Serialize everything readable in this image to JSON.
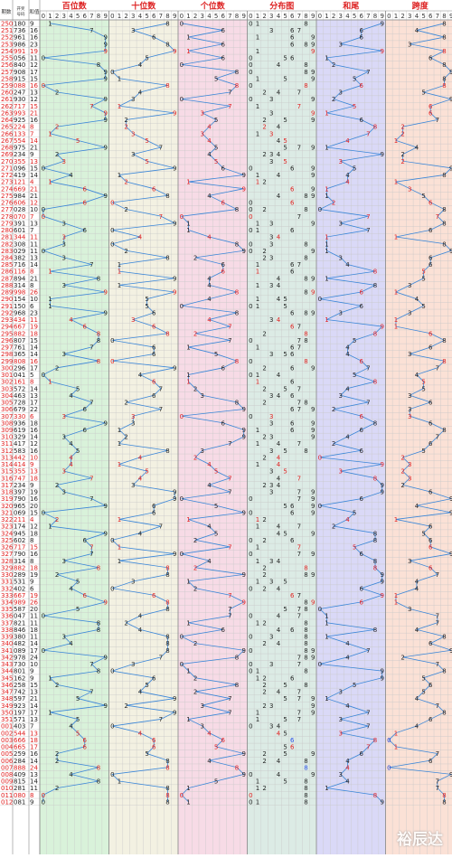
{
  "chart_data": {
    "type": "line",
    "title": "",
    "header_labels": {
      "period": "期数",
      "number": "开奖号码",
      "sum": "和值"
    },
    "sections": [
      {
        "key": "bai",
        "title": "百位数",
        "digits": [
          "0",
          "1",
          "2",
          "3",
          "4",
          "5",
          "6",
          "7",
          "8",
          "9"
        ],
        "bg": "#d9f2da",
        "line_color": "#3a86d8"
      },
      {
        "key": "shi",
        "title": "十位数",
        "digits": [
          "0",
          "1",
          "2",
          "3",
          "4",
          "5",
          "6",
          "7",
          "8",
          "9"
        ],
        "bg": "#f3f1e2",
        "line_color": "#3a86d8"
      },
      {
        "key": "ge",
        "title": "个位数",
        "digits": [
          "0",
          "1",
          "2",
          "3",
          "4",
          "5",
          "6",
          "7",
          "8",
          "9"
        ],
        "bg": "#f7dbe6",
        "line_color": "#3a86d8"
      },
      {
        "key": "fenbu",
        "title": "分布图",
        "digits": [
          "0",
          "1",
          "2",
          "3",
          "4",
          "5",
          "6",
          "7",
          "8",
          "9"
        ],
        "bg": "#dcebe5",
        "line_color": "#3a86d8"
      },
      {
        "key": "hewei",
        "title": "和尾",
        "digits": [
          "0",
          "1",
          "2",
          "3",
          "4",
          "5",
          "6",
          "7",
          "8",
          "9"
        ],
        "bg": "#dad9f7",
        "line_color": "#3a86d8"
      },
      {
        "key": "kuadu",
        "title": "跨度",
        "digits": [
          "0",
          "1",
          "2",
          "3",
          "4",
          "5",
          "6",
          "7",
          "8",
          "9"
        ],
        "bg": "#fbe1d6",
        "line_color": "#3a86d8"
      }
    ],
    "rows": [
      {
        "p": "250",
        "n": "180",
        "s": "9"
      },
      {
        "p": "251",
        "n": "736",
        "s": "16"
      },
      {
        "p": "252",
        "n": "961",
        "s": "16"
      },
      {
        "p": "253",
        "n": "986",
        "s": "23"
      },
      {
        "p": "254",
        "n": "991",
        "s": "19"
      },
      {
        "p": "255",
        "n": "056",
        "s": "11"
      },
      {
        "p": "256",
        "n": "840",
        "s": "12"
      },
      {
        "p": "257",
        "n": "908",
        "s": "17"
      },
      {
        "p": "258",
        "n": "915",
        "s": "15"
      },
      {
        "p": "259",
        "n": "088",
        "s": "16"
      },
      {
        "p": "260",
        "n": "247",
        "s": "13"
      },
      {
        "p": "261",
        "n": "930",
        "s": "12"
      },
      {
        "p": "262",
        "n": "717",
        "s": "15"
      },
      {
        "p": "263",
        "n": "993",
        "s": "21"
      },
      {
        "p": "264",
        "n": "925",
        "s": "16"
      },
      {
        "p": "265",
        "n": "224",
        "s": "8"
      },
      {
        "p": "266",
        "n": "133",
        "s": "7"
      },
      {
        "p": "267",
        "n": "554",
        "s": "14"
      },
      {
        "p": "268",
        "n": "975",
        "s": "21"
      },
      {
        "p": "269",
        "n": "234",
        "s": "9"
      },
      {
        "p": "270",
        "n": "355",
        "s": "13"
      },
      {
        "p": "271",
        "n": "096",
        "s": "15"
      },
      {
        "p": "272",
        "n": "419",
        "s": "14"
      },
      {
        "p": "273",
        "n": "121",
        "s": "4"
      },
      {
        "p": "274",
        "n": "669",
        "s": "21"
      },
      {
        "p": "275",
        "n": "984",
        "s": "21"
      },
      {
        "p": "276",
        "n": "606",
        "s": "12"
      },
      {
        "p": "277",
        "n": "028",
        "s": "10"
      },
      {
        "p": "278",
        "n": "070",
        "s": "7"
      },
      {
        "p": "279",
        "n": "391",
        "s": "13"
      },
      {
        "p": "280",
        "n": "601",
        "s": "7"
      },
      {
        "p": "281",
        "n": "344",
        "s": "11"
      },
      {
        "p": "282",
        "n": "308",
        "s": "11"
      },
      {
        "p": "283",
        "n": "029",
        "s": "11"
      },
      {
        "p": "284",
        "n": "382",
        "s": "13"
      },
      {
        "p": "285",
        "n": "716",
        "s": "14"
      },
      {
        "p": "286",
        "n": "116",
        "s": "8"
      },
      {
        "p": "287",
        "n": "894",
        "s": "21"
      },
      {
        "p": "288",
        "n": "314",
        "s": "8"
      },
      {
        "p": "289",
        "n": "998",
        "s": "26"
      },
      {
        "p": "290",
        "n": "154",
        "s": "10"
      },
      {
        "p": "291",
        "n": "150",
        "s": "6"
      },
      {
        "p": "292",
        "n": "968",
        "s": "23"
      },
      {
        "p": "293",
        "n": "434",
        "s": "11"
      },
      {
        "p": "294",
        "n": "667",
        "s": "19"
      },
      {
        "p": "295",
        "n": "882",
        "s": "18"
      },
      {
        "p": "296",
        "n": "807",
        "s": "15"
      },
      {
        "p": "297",
        "n": "761",
        "s": "14"
      },
      {
        "p": "298",
        "n": "365",
        "s": "14"
      },
      {
        "p": "299",
        "n": "808",
        "s": "16"
      },
      {
        "p": "300",
        "n": "296",
        "s": "17"
      },
      {
        "p": "301",
        "n": "041",
        "s": "5"
      },
      {
        "p": "302",
        "n": "161",
        "s": "8"
      },
      {
        "p": "303",
        "n": "572",
        "s": "14"
      },
      {
        "p": "304",
        "n": "463",
        "s": "13"
      },
      {
        "p": "305",
        "n": "728",
        "s": "17"
      },
      {
        "p": "306",
        "n": "679",
        "s": "22"
      },
      {
        "p": "307",
        "n": "330",
        "s": "6"
      },
      {
        "p": "308",
        "n": "936",
        "s": "18"
      },
      {
        "p": "309",
        "n": "619",
        "s": "16"
      },
      {
        "p": "310",
        "n": "329",
        "s": "14"
      },
      {
        "p": "311",
        "n": "417",
        "s": "12"
      },
      {
        "p": "312",
        "n": "583",
        "s": "16"
      },
      {
        "p": "313",
        "n": "442",
        "s": "10"
      },
      {
        "p": "314",
        "n": "414",
        "s": "9"
      },
      {
        "p": "315",
        "n": "355",
        "s": "13"
      },
      {
        "p": "316",
        "n": "747",
        "s": "18"
      },
      {
        "p": "317",
        "n": "234",
        "s": "9"
      },
      {
        "p": "318",
        "n": "397",
        "s": "19"
      },
      {
        "p": "319",
        "n": "790",
        "s": "16"
      },
      {
        "p": "320",
        "n": "965",
        "s": "20"
      },
      {
        "p": "321",
        "n": "069",
        "s": "15"
      },
      {
        "p": "322",
        "n": "211",
        "s": "4"
      },
      {
        "p": "323",
        "n": "174",
        "s": "12"
      },
      {
        "p": "324",
        "n": "945",
        "s": "18"
      },
      {
        "p": "325",
        "n": "602",
        "s": "8"
      },
      {
        "p": "326",
        "n": "717",
        "s": "15"
      },
      {
        "p": "327",
        "n": "790",
        "s": "16"
      },
      {
        "p": "328",
        "n": "314",
        "s": "8"
      },
      {
        "p": "329",
        "n": "882",
        "s": "18"
      },
      {
        "p": "330",
        "n": "289",
        "s": "19"
      },
      {
        "p": "331",
        "n": "531",
        "s": "9"
      },
      {
        "p": "332",
        "n": "402",
        "s": "6"
      },
      {
        "p": "333",
        "n": "667",
        "s": "19"
      },
      {
        "p": "334",
        "n": "989",
        "s": "26"
      },
      {
        "p": "335",
        "n": "587",
        "s": "20"
      },
      {
        "p": "336",
        "n": "047",
        "s": "11"
      },
      {
        "p": "337",
        "n": "821",
        "s": "11"
      },
      {
        "p": "338",
        "n": "846",
        "s": "18"
      },
      {
        "p": "339",
        "n": "380",
        "s": "11"
      },
      {
        "p": "340",
        "n": "482",
        "s": "14"
      },
      {
        "p": "341",
        "n": "089",
        "s": "17"
      },
      {
        "p": "342",
        "n": "978",
        "s": "24"
      },
      {
        "p": "343",
        "n": "730",
        "s": "10"
      },
      {
        "p": "344",
        "n": "801",
        "s": "9"
      },
      {
        "p": "345",
        "n": "162",
        "s": "9"
      },
      {
        "p": "346",
        "n": "258",
        "s": "15"
      },
      {
        "p": "347",
        "n": "742",
        "s": "13"
      },
      {
        "p": "348",
        "n": "597",
        "s": "21"
      },
      {
        "p": "349",
        "n": "923",
        "s": "14"
      },
      {
        "p": "350",
        "n": "197",
        "s": "17"
      },
      {
        "p": "351",
        "n": "571",
        "s": "13"
      },
      {
        "p": "001",
        "n": "403",
        "s": "7"
      },
      {
        "p": "002",
        "n": "544",
        "s": "13"
      },
      {
        "p": "003",
        "n": "666",
        "s": "18"
      },
      {
        "p": "004",
        "n": "665",
        "s": "17"
      },
      {
        "p": "005",
        "n": "259",
        "s": "16"
      },
      {
        "p": "006",
        "n": "284",
        "s": "14"
      },
      {
        "p": "007",
        "n": "888",
        "s": "24"
      },
      {
        "p": "008",
        "n": "409",
        "s": "13"
      },
      {
        "p": "009",
        "n": "815",
        "s": "14"
      },
      {
        "p": "010",
        "n": "281",
        "s": "11"
      },
      {
        "p": "011",
        "n": "080",
        "s": "8"
      },
      {
        "p": "012",
        "n": "081",
        "s": "9"
      }
    ]
  },
  "watermark": "裕辰达",
  "colors": {
    "period_red": "#e02020",
    "text": "#222222",
    "grid": "#c8c8c8",
    "zero_highlight": "#1a3cd8",
    "pair_highlight": "#e02020",
    "triple_highlight": "#2a50e8"
  }
}
